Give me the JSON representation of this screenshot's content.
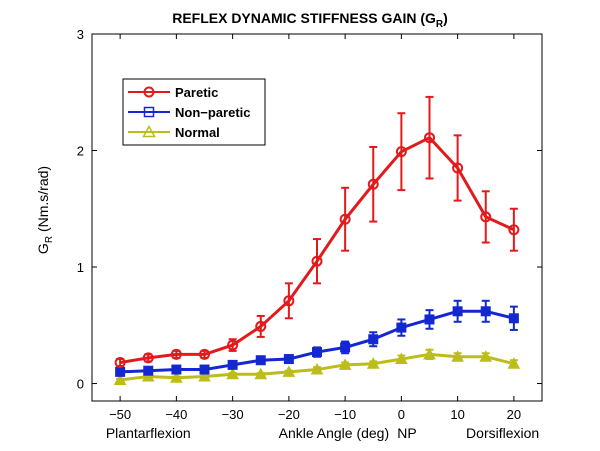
{
  "chart_data": {
    "type": "line",
    "title": "REFLEX DYNAMIC STIFFNESS GAIN (G",
    "title_sub": "R",
    "title_close": ")",
    "ylabel_main": "G",
    "ylabel_sub": "R",
    "ylabel_units": " (Nm.s/rad)",
    "xlim": [
      -55,
      25
    ],
    "ylim": [
      -0.15,
      3
    ],
    "xticks": [
      -50,
      -40,
      -30,
      -20,
      -10,
      0,
      10,
      20
    ],
    "xtick_labels": [
      "−50",
      "−40",
      "−30",
      "−20",
      "−10",
      "0",
      "10",
      "20"
    ],
    "yticks": [
      0,
      1,
      2,
      3
    ],
    "ytick_labels": [
      "0",
      "1",
      "2",
      "3"
    ],
    "x_annotations": [
      {
        "text": "Plantarflexion",
        "x": -45
      },
      {
        "text": "Ankle Angle (deg)",
        "x": -12
      },
      {
        "text": "NP",
        "x": 1
      },
      {
        "text": "Dorsiflexion",
        "x": 18
      }
    ],
    "x": [
      -50,
      -45,
      -40,
      -35,
      -30,
      -25,
      -20,
      -15,
      -10,
      -5,
      0,
      5,
      10,
      15,
      20
    ],
    "legend_position": "top-left",
    "series": [
      {
        "name": "Paretic",
        "color": "#e31a1c",
        "marker": "circle",
        "values": [
          0.18,
          0.22,
          0.25,
          0.25,
          0.33,
          0.49,
          0.71,
          1.05,
          1.41,
          1.71,
          1.99,
          2.11,
          1.85,
          1.43,
          1.32
        ],
        "errors": [
          0.03,
          0.03,
          0.03,
          0.03,
          0.05,
          0.09,
          0.15,
          0.19,
          0.27,
          0.32,
          0.33,
          0.35,
          0.28,
          0.22,
          0.18
        ]
      },
      {
        "name": "Non−paretic",
        "color": "#1428d2",
        "marker": "square",
        "values": [
          0.1,
          0.11,
          0.12,
          0.12,
          0.16,
          0.2,
          0.21,
          0.27,
          0.31,
          0.38,
          0.48,
          0.55,
          0.62,
          0.62,
          0.56
        ],
        "errors": [
          0.02,
          0.02,
          0.02,
          0.02,
          0.03,
          0.03,
          0.03,
          0.04,
          0.05,
          0.06,
          0.07,
          0.08,
          0.09,
          0.09,
          0.1
        ]
      },
      {
        "name": "Normal",
        "color": "#bcbd1a",
        "marker": "triangle",
        "values": [
          0.03,
          0.06,
          0.05,
          0.06,
          0.08,
          0.08,
          0.1,
          0.12,
          0.16,
          0.17,
          0.21,
          0.25,
          0.23,
          0.23,
          0.17
        ],
        "errors": [
          0.01,
          0.01,
          0.01,
          0.01,
          0.01,
          0.01,
          0.01,
          0.02,
          0.02,
          0.02,
          0.03,
          0.04,
          0.03,
          0.03,
          0.03
        ]
      }
    ]
  }
}
